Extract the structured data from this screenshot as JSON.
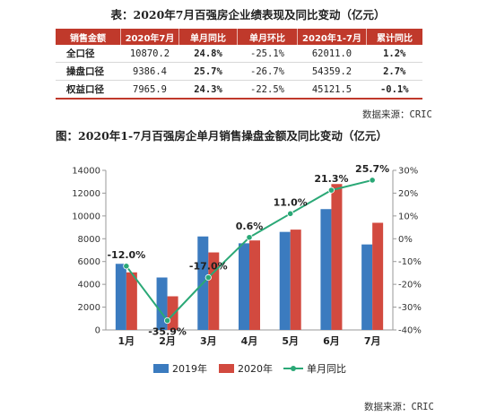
{
  "table": {
    "title": "表：2020年7月百强房企业绩表现及同比变动（亿元）",
    "headers": [
      "销售金额",
      "2020年7月",
      "单月同比",
      "单月环比",
      "2020年1-7月",
      "累计同比"
    ],
    "rows": [
      {
        "label": "全口径",
        "cells": [
          "10870.2",
          "24.8%",
          "-25.1%",
          "62011.0",
          "1.2%"
        ]
      },
      {
        "label": "操盘口径",
        "cells": [
          "9386.4",
          "25.7%",
          "-26.7%",
          "54359.2",
          "2.7%"
        ]
      },
      {
        "label": "权益口径",
        "cells": [
          "7965.9",
          "24.3%",
          "-22.5%",
          "45121.5",
          "-0.1%"
        ]
      }
    ],
    "source": "数据来源：CRIC"
  },
  "chart_data": {
    "type": "bar",
    "title": "图：2020年1-7月百强房企单月销售操盘金额及同比变动（亿元）",
    "categories": [
      "1月",
      "2月",
      "3月",
      "4月",
      "5月",
      "6月",
      "7月"
    ],
    "series": [
      {
        "name": "2019年",
        "type": "bar",
        "axis": "left",
        "color": "#3b7bbf",
        "values": [
          5800,
          4600,
          8200,
          7600,
          8600,
          10600,
          7500
        ]
      },
      {
        "name": "2020年",
        "type": "bar",
        "axis": "left",
        "color": "#d24a3f",
        "values": [
          5050,
          2950,
          6800,
          7850,
          8800,
          12800,
          9400
        ]
      },
      {
        "name": "单月同比",
        "type": "line",
        "axis": "right",
        "color": "#2aa876",
        "values": [
          -12.0,
          -35.9,
          -17.0,
          0.6,
          11.0,
          21.3,
          25.7
        ]
      }
    ],
    "line_labels": [
      "-12.0%",
      "-35.9%",
      "-17.0%",
      "0.6%",
      "11.0%",
      "21.3%",
      "25.7%"
    ],
    "y_left": {
      "min": 0,
      "max": 14000,
      "step": 2000
    },
    "y_right": {
      "min": -40,
      "max": 30,
      "step": 10,
      "suffix": "%"
    },
    "legend": "bottom",
    "grid": false,
    "source": "数据来源：CRIC"
  }
}
